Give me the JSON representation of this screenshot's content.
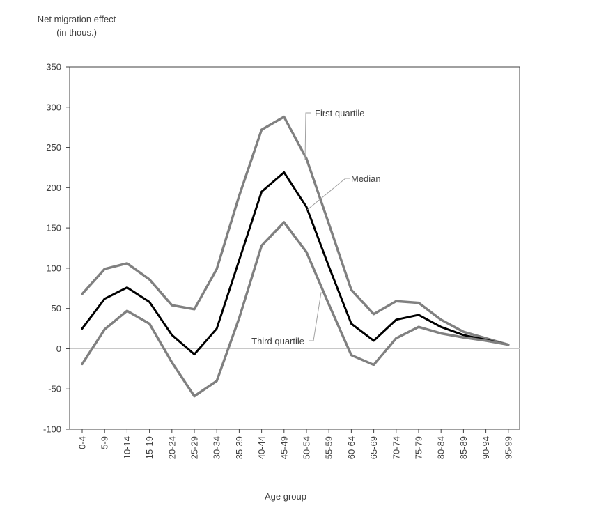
{
  "chart_data": {
    "type": "line",
    "ylabel": [
      "Net migration effect",
      "(in thous.)"
    ],
    "xlabel": "Age group",
    "ylim": [
      -100,
      350
    ],
    "yticks": [
      -100,
      -50,
      0,
      50,
      100,
      150,
      200,
      250,
      300,
      350
    ],
    "categories": [
      "0-4",
      "5-9",
      "10-14",
      "15-19",
      "20-24",
      "25-29",
      "30-34",
      "35-39",
      "40-44",
      "45-49",
      "50-54",
      "55-59",
      "60-64",
      "65-69",
      "70-74",
      "75-79",
      "80-84",
      "85-89",
      "90-94",
      "95-99"
    ],
    "series": [
      {
        "name": "First quartile",
        "color": "#808080",
        "values": [
          68,
          99,
          106,
          86,
          54,
          49,
          99,
          190,
          272,
          288,
          236,
          155,
          73,
          43,
          59,
          57,
          36,
          21,
          13,
          5
        ]
      },
      {
        "name": "Median",
        "color": "#000000",
        "values": [
          25,
          62,
          76,
          58,
          17,
          -7,
          25,
          110,
          195,
          219,
          176,
          102,
          31,
          10,
          36,
          42,
          27,
          17,
          11,
          5
        ]
      },
      {
        "name": "Third quartile",
        "color": "#808080",
        "values": [
          -19,
          24,
          47,
          31,
          -17,
          -59,
          -40,
          38,
          128,
          157,
          120,
          55,
          -8,
          -20,
          13,
          27,
          19,
          14,
          10,
          5
        ]
      }
    ],
    "annotations": [
      {
        "text": "First quartile",
        "series": "First quartile",
        "at": "50-54"
      },
      {
        "text": "Median",
        "series": "Median",
        "at": "50-54"
      },
      {
        "text": "Third quartile",
        "series": "Third quartile",
        "at": "55-59"
      }
    ],
    "grid": false,
    "zero_line": true,
    "legend": "none"
  }
}
